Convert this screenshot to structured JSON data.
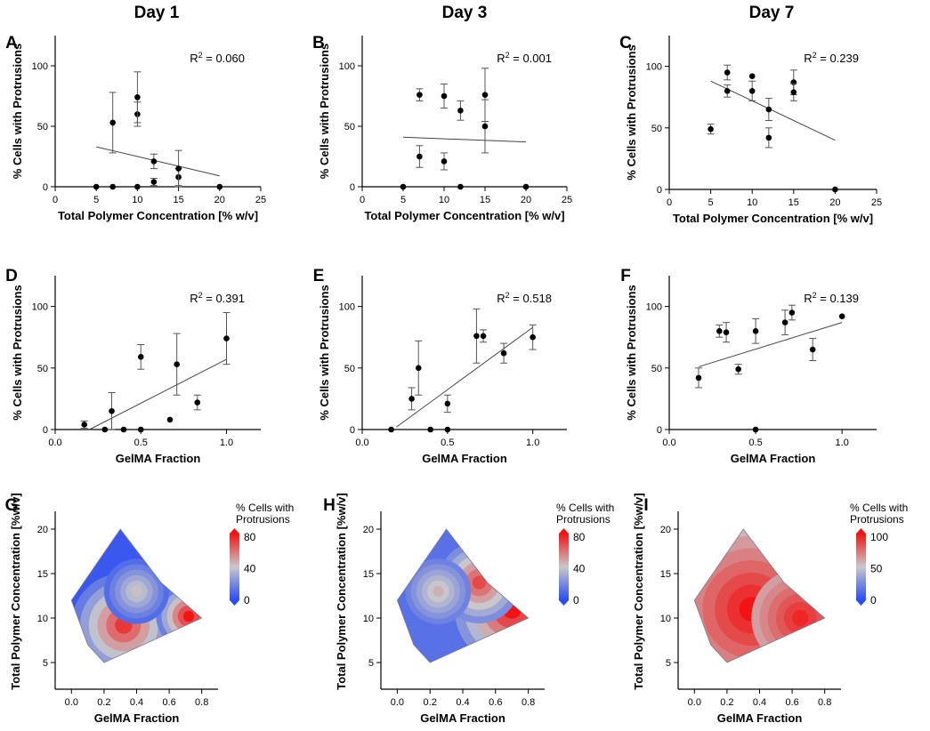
{
  "column_titles": [
    "Day 1",
    "Day 3",
    "Day 7"
  ],
  "colors": {
    "point": "#000000",
    "fit_line": "#444444",
    "axis": "#000000",
    "contour_low": "#2a4cf2",
    "contour_mid": "#c8c8cc",
    "contour_high": "#f21414"
  },
  "chart_data": [
    {
      "panel": "A",
      "type": "scatter",
      "title": "Day 1",
      "xlabel": "Total Polymer Concentration [% w/v]",
      "ylabel": "% Cells with Protrusions",
      "xlim": [
        0,
        25
      ],
      "ylim": [
        0,
        125
      ],
      "xticks": [
        0,
        5,
        10,
        15,
        20,
        25
      ],
      "xtick_labels": [
        "0",
        "5",
        "10",
        "15",
        "20",
        "25"
      ],
      "yticks": [
        0,
        50,
        100
      ],
      "ytick_labels": [
        "0",
        "50",
        "100"
      ],
      "r2_label": "R",
      "r2_value": " = 0.060",
      "points": [
        {
          "x": 5,
          "y": 0,
          "err": 0
        },
        {
          "x": 7,
          "y": 0,
          "err": 0
        },
        {
          "x": 7,
          "y": 53,
          "err": 25
        },
        {
          "x": 10,
          "y": 0,
          "err": 0
        },
        {
          "x": 10,
          "y": 60,
          "err": 10
        },
        {
          "x": 10,
          "y": 74,
          "err": 21
        },
        {
          "x": 12,
          "y": 4,
          "err": 3
        },
        {
          "x": 12,
          "y": 21,
          "err": 6
        },
        {
          "x": 15,
          "y": 8,
          "err": 7
        },
        {
          "x": 15,
          "y": 15,
          "err": 15
        },
        {
          "x": 20,
          "y": 0,
          "err": 0
        }
      ],
      "fit": [
        [
          5,
          33
        ],
        [
          20,
          9
        ]
      ]
    },
    {
      "panel": "B",
      "type": "scatter",
      "title": "Day 3",
      "xlabel": "Total Polymer Concentration [% w/v]",
      "ylabel": "% Cells with Protrusions",
      "xlim": [
        0,
        25
      ],
      "ylim": [
        0,
        125
      ],
      "xticks": [
        0,
        5,
        10,
        15,
        20,
        25
      ],
      "xtick_labels": [
        "0",
        "5",
        "10",
        "15",
        "20",
        "25"
      ],
      "yticks": [
        0,
        50,
        100
      ],
      "ytick_labels": [
        "0",
        "50",
        "100"
      ],
      "r2_label": "R",
      "r2_value": " = 0.001",
      "points": [
        {
          "x": 5,
          "y": 0,
          "err": 0
        },
        {
          "x": 7,
          "y": 76,
          "err": 5
        },
        {
          "x": 7,
          "y": 25,
          "err": 9
        },
        {
          "x": 10,
          "y": 75,
          "err": 10
        },
        {
          "x": 10,
          "y": 21,
          "err": 7
        },
        {
          "x": 12,
          "y": 63,
          "err": 8
        },
        {
          "x": 12,
          "y": 0,
          "err": 0
        },
        {
          "x": 15,
          "y": 76,
          "err": 22
        },
        {
          "x": 15,
          "y": 50,
          "err": 22
        },
        {
          "x": 20,
          "y": 0,
          "err": 0
        }
      ],
      "fit": [
        [
          5,
          41
        ],
        [
          20,
          37
        ]
      ]
    },
    {
      "panel": "C",
      "type": "scatter",
      "title": "Day 7",
      "xlabel": "Total Polymer Concentration [% w/v]",
      "ylabel": "% Cells with Protrusions",
      "xlim": [
        0,
        25
      ],
      "ylim": [
        0,
        125
      ],
      "xticks": [
        0,
        5,
        10,
        15,
        20,
        25
      ],
      "xtick_labels": [
        "0",
        "5",
        "10",
        "15",
        "20",
        "25"
      ],
      "yticks": [
        0,
        50,
        100
      ],
      "ytick_labels": [
        "0",
        "50",
        "100"
      ],
      "r2_label": "R",
      "r2_value": " = 0.239",
      "points": [
        {
          "x": 5,
          "y": 49,
          "err": 4
        },
        {
          "x": 7,
          "y": 95,
          "err": 6
        },
        {
          "x": 7,
          "y": 80,
          "err": 5
        },
        {
          "x": 10,
          "y": 92,
          "err": 0
        },
        {
          "x": 10,
          "y": 80,
          "err": 8
        },
        {
          "x": 12,
          "y": 65,
          "err": 9
        },
        {
          "x": 12,
          "y": 42,
          "err": 8
        },
        {
          "x": 15,
          "y": 87,
          "err": 10
        },
        {
          "x": 15,
          "y": 79,
          "err": 7
        },
        {
          "x": 20,
          "y": 0,
          "err": 0
        }
      ],
      "fit": [
        [
          5,
          88
        ],
        [
          20,
          40
        ]
      ]
    },
    {
      "panel": "D",
      "type": "scatter",
      "xlabel": "GelMA Fraction",
      "ylabel": "% Cells with Protrusions",
      "xlim": [
        0,
        1.2
      ],
      "ylim": [
        0,
        125
      ],
      "xticks": [
        0,
        0.5,
        1.0
      ],
      "xtick_labels": [
        "0.0",
        "0.5",
        "1.0"
      ],
      "yticks": [
        0,
        50,
        100
      ],
      "ytick_labels": [
        "0",
        "50",
        "100"
      ],
      "r2_label": "R",
      "r2_value": " = 0.391",
      "points": [
        {
          "x": 0.17,
          "y": 4,
          "err": 3
        },
        {
          "x": 0.29,
          "y": 0,
          "err": 0
        },
        {
          "x": 0.33,
          "y": 15,
          "err": 15
        },
        {
          "x": 0.4,
          "y": 0,
          "err": 0
        },
        {
          "x": 0.5,
          "y": 0,
          "err": 0
        },
        {
          "x": 0.5,
          "y": 59,
          "err": 10
        },
        {
          "x": 0.67,
          "y": 8,
          "err": 0
        },
        {
          "x": 0.71,
          "y": 53,
          "err": 25
        },
        {
          "x": 0.83,
          "y": 22,
          "err": 6
        },
        {
          "x": 1.0,
          "y": 74,
          "err": 21
        }
      ],
      "fit": [
        [
          0.2,
          0
        ],
        [
          1.0,
          57
        ]
      ]
    },
    {
      "panel": "E",
      "type": "scatter",
      "xlabel": "GelMA Fraction",
      "ylabel": "% Cells with Protrusions",
      "xlim": [
        0,
        1.2
      ],
      "ylim": [
        0,
        125
      ],
      "xticks": [
        0,
        0.5,
        1.0
      ],
      "xtick_labels": [
        "0.0",
        "0.5",
        "1.0"
      ],
      "yticks": [
        0,
        50,
        100
      ],
      "ytick_labels": [
        "0",
        "50",
        "100"
      ],
      "r2_label": "R",
      "r2_value": " = 0.518",
      "points": [
        {
          "x": 0.17,
          "y": 0,
          "err": 0
        },
        {
          "x": 0.29,
          "y": 25,
          "err": 9
        },
        {
          "x": 0.33,
          "y": 50,
          "err": 22
        },
        {
          "x": 0.4,
          "y": 0,
          "err": 0
        },
        {
          "x": 0.5,
          "y": 21,
          "err": 7
        },
        {
          "x": 0.5,
          "y": 0,
          "err": 0
        },
        {
          "x": 0.67,
          "y": 76,
          "err": 22
        },
        {
          "x": 0.71,
          "y": 76,
          "err": 5
        },
        {
          "x": 0.83,
          "y": 62,
          "err": 8
        },
        {
          "x": 1.0,
          "y": 75,
          "err": 10
        }
      ],
      "fit": [
        [
          0.2,
          2
        ],
        [
          1.0,
          83
        ]
      ]
    },
    {
      "panel": "F",
      "type": "scatter",
      "xlabel": "GelMA Fraction",
      "ylabel": "% Cells with Protrusions",
      "xlim": [
        0,
        1.2
      ],
      "ylim": [
        0,
        125
      ],
      "xticks": [
        0,
        0.5,
        1.0
      ],
      "xtick_labels": [
        "0.0",
        "0.5",
        "1.0"
      ],
      "yticks": [
        0,
        50,
        100
      ],
      "ytick_labels": [
        "0",
        "50",
        "100"
      ],
      "r2_label": "R",
      "r2_value": " = 0.139",
      "points": [
        {
          "x": 0.17,
          "y": 42,
          "err": 8
        },
        {
          "x": 0.29,
          "y": 80,
          "err": 5
        },
        {
          "x": 0.33,
          "y": 79,
          "err": 8
        },
        {
          "x": 0.4,
          "y": 49,
          "err": 4
        },
        {
          "x": 0.5,
          "y": 80,
          "err": 10
        },
        {
          "x": 0.5,
          "y": 0,
          "err": 0
        },
        {
          "x": 0.67,
          "y": 87,
          "err": 10
        },
        {
          "x": 0.71,
          "y": 95,
          "err": 6
        },
        {
          "x": 0.83,
          "y": 65,
          "err": 9
        },
        {
          "x": 1.0,
          "y": 92,
          "err": 0
        }
      ],
      "fit": [
        [
          0.17,
          51
        ],
        [
          1.0,
          87
        ]
      ]
    },
    {
      "panel": "G",
      "type": "heatmap",
      "xlabel": "GelMA Fraction",
      "ylabel": "Total Polymer Concentration [%w/v]",
      "xlim": [
        -0.1,
        0.9
      ],
      "ylim": [
        2,
        22
      ],
      "xticks": [
        0,
        0.2,
        0.4,
        0.6,
        0.8
      ],
      "xtick_labels": [
        "0.0",
        "0.2",
        "0.4",
        "0.6",
        "0.8"
      ],
      "yticks": [
        5,
        10,
        15,
        20
      ],
      "ytick_labels": [
        "5",
        "10",
        "15",
        "20"
      ],
      "colorbar_title": [
        "% Cells with",
        "Protrusions"
      ],
      "colorbar_ticks": [
        "80",
        "40",
        "0"
      ],
      "colorbar_range": [
        0,
        80
      ],
      "hull": [
        [
          0.3,
          20
        ],
        [
          0.55,
          14
        ],
        [
          0.8,
          10
        ],
        [
          0.2,
          5
        ],
        [
          0.1,
          7
        ],
        [
          0,
          12
        ]
      ],
      "hotspots": [
        {
          "x": 0.32,
          "y": 9.2,
          "r": 0.32,
          "value": 72
        },
        {
          "x": 0.72,
          "y": 10.2,
          "r": 0.2,
          "value": 80
        },
        {
          "x": 0.4,
          "y": 13,
          "r": 0.2,
          "value": 42
        }
      ],
      "base_value": 4
    },
    {
      "panel": "H",
      "type": "heatmap",
      "xlabel": "GelMA Fraction",
      "ylabel": "Total Polymer Concentration [%w/v]",
      "xlim": [
        -0.1,
        0.9
      ],
      "ylim": [
        2,
        22
      ],
      "xticks": [
        0,
        0.2,
        0.4,
        0.6,
        0.8
      ],
      "xtick_labels": [
        "0.0",
        "0.2",
        "0.4",
        "0.6",
        "0.8"
      ],
      "yticks": [
        5,
        10,
        15,
        20
      ],
      "ytick_labels": [
        "5",
        "10",
        "15",
        "20"
      ],
      "colorbar_title": [
        "% Cells with",
        "Protrusions"
      ],
      "colorbar_ticks": [
        "80",
        "40",
        "0"
      ],
      "colorbar_range": [
        0,
        80
      ],
      "hull": [
        [
          0.3,
          20
        ],
        [
          0.55,
          14
        ],
        [
          0.8,
          10
        ],
        [
          0.2,
          5
        ],
        [
          0.1,
          7
        ],
        [
          0,
          12
        ]
      ],
      "hotspots": [
        {
          "x": 0.7,
          "y": 11,
          "r": 0.35,
          "value": 80
        },
        {
          "x": 0.5,
          "y": 14,
          "r": 0.25,
          "value": 68
        },
        {
          "x": 0.25,
          "y": 13,
          "r": 0.2,
          "value": 45
        }
      ],
      "base_value": 12
    },
    {
      "panel": "I",
      "type": "heatmap",
      "xlabel": "GelMA Fraction",
      "ylabel": "Total Polymer Concentration [%w/v]",
      "xlim": [
        -0.1,
        0.9
      ],
      "ylim": [
        2,
        22
      ],
      "xticks": [
        0,
        0.2,
        0.4,
        0.6,
        0.8
      ],
      "xtick_labels": [
        "0.0",
        "0.2",
        "0.4",
        "0.6",
        "0.8"
      ],
      "yticks": [
        5,
        10,
        15,
        20
      ],
      "ytick_labels": [
        "5",
        "10",
        "15",
        "20"
      ],
      "colorbar_title": [
        "% Cells with",
        "Protrusions"
      ],
      "colorbar_ticks": [
        "100",
        "50",
        "0"
      ],
      "colorbar_range": [
        0,
        100
      ],
      "hull": [
        [
          0.3,
          20
        ],
        [
          0.55,
          14
        ],
        [
          0.8,
          10
        ],
        [
          0.2,
          5
        ],
        [
          0.1,
          7
        ],
        [
          0,
          12
        ]
      ],
      "hotspots": [
        {
          "x": 0.35,
          "y": 11,
          "r": 0.45,
          "value": 100
        },
        {
          "x": 0.65,
          "y": 10,
          "r": 0.3,
          "value": 95
        }
      ],
      "base_value": 55
    }
  ]
}
